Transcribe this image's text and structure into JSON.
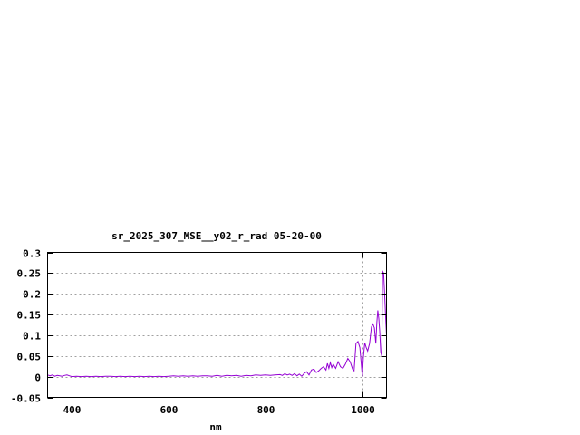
{
  "chart_data": {
    "type": "line",
    "title": "sr_2025_307_MSE__y02_r_rad 05-20-00",
    "xlabel": "nm",
    "ylabel": "",
    "xlim": [
      350,
      1050
    ],
    "ylim": [
      -0.05,
      0.3
    ],
    "xticks": [
      400,
      600,
      800,
      1000
    ],
    "xtick_labels": [
      "400",
      "600",
      "800",
      "1000"
    ],
    "yticks": [
      -0.05,
      0,
      0.05,
      0.1,
      0.15,
      0.2,
      0.25,
      0.3
    ],
    "ytick_labels": [
      "-0.05",
      "0",
      "0.05",
      "0.1",
      "0.15",
      "0.2",
      "0.25",
      "0.3"
    ],
    "grid": true,
    "line_color": "#9400d3",
    "series": [
      {
        "x": [
          350,
          355,
          360,
          365,
          370,
          375,
          380,
          385,
          390,
          395,
          400,
          410,
          420,
          430,
          440,
          450,
          460,
          470,
          480,
          490,
          500,
          510,
          520,
          530,
          540,
          550,
          560,
          570,
          580,
          590,
          600,
          610,
          620,
          630,
          640,
          650,
          660,
          670,
          680,
          690,
          700,
          710,
          720,
          730,
          740,
          750,
          760,
          770,
          780,
          790,
          800,
          810,
          820,
          830,
          835,
          840,
          845,
          850,
          855,
          860,
          865,
          870,
          875,
          880,
          885,
          890,
          895,
          900,
          905,
          910,
          915,
          920,
          925,
          928,
          931,
          934,
          937,
          940,
          945,
          950,
          955,
          960,
          965,
          970,
          975,
          980,
          983,
          987,
          991,
          995,
          998,
          1000,
          1002,
          1005,
          1008,
          1011,
          1015,
          1019,
          1022,
          1025,
          1028,
          1030,
          1032,
          1034,
          1036,
          1038,
          1040,
          1042,
          1044,
          1046,
          1048,
          1050
        ],
        "y": [
          0.004,
          0.002,
          0.004,
          0.001,
          0.003,
          0.002,
          0.001,
          0.003,
          0.004,
          0.002,
          0.0,
          0.001,
          0.0,
          0.001,
          0.0,
          0.001,
          0.0,
          0.001,
          0.001,
          0.0,
          0.001,
          0.0,
          0.001,
          0.0,
          0.001,
          0.0,
          0.001,
          0.0,
          0.001,
          0.0,
          0.001,
          0.002,
          0.001,
          0.002,
          0.001,
          0.002,
          0.001,
          0.002,
          0.002,
          0.001,
          0.003,
          0.001,
          0.003,
          0.002,
          0.003,
          0.001,
          0.003,
          0.002,
          0.004,
          0.003,
          0.004,
          0.003,
          0.004,
          0.005,
          0.003,
          0.007,
          0.004,
          0.006,
          0.003,
          0.007,
          0.002,
          0.006,
          0.001,
          0.008,
          0.012,
          0.004,
          0.016,
          0.018,
          0.01,
          0.014,
          0.02,
          0.024,
          0.016,
          0.032,
          0.02,
          0.034,
          0.022,
          0.03,
          0.02,
          0.036,
          0.024,
          0.02,
          0.03,
          0.044,
          0.036,
          0.018,
          0.014,
          0.08,
          0.085,
          0.07,
          0.03,
          0.0,
          0.045,
          0.082,
          0.07,
          0.062,
          0.08,
          0.12,
          0.127,
          0.118,
          0.08,
          0.13,
          0.16,
          0.14,
          0.11,
          0.06,
          0.05,
          0.254,
          0.25,
          0.2,
          0.15,
          0.1
        ]
      }
    ]
  }
}
